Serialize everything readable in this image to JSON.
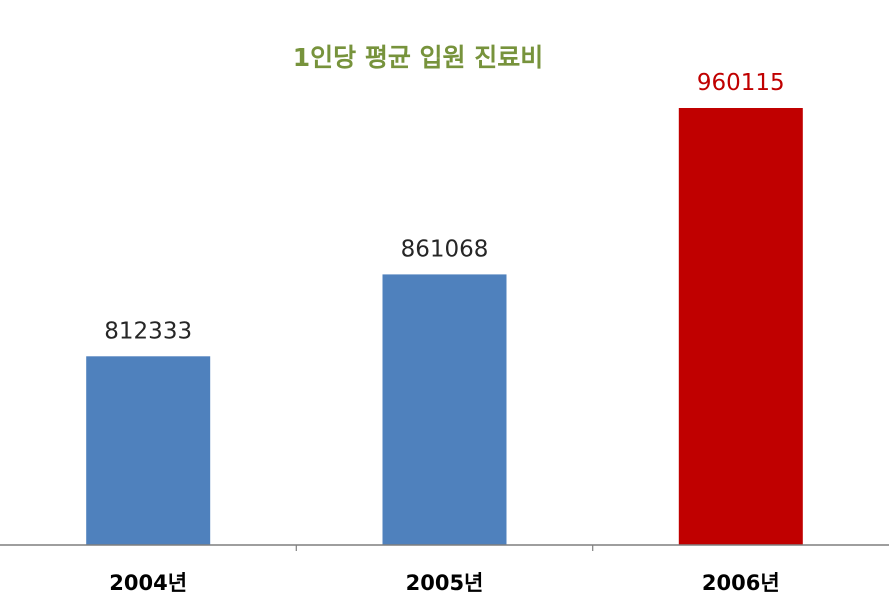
{
  "chart_data": {
    "type": "bar",
    "title": "1인당 평균 입원 진료비",
    "xlabel": "",
    "ylabel": "",
    "categories": [
      "2004년",
      "2005년",
      "2006년"
    ],
    "values": [
      812333,
      861068,
      960115
    ],
    "data_labels": [
      "812333",
      "861068",
      "960115"
    ],
    "ylim": [
      700000,
      1000000
    ],
    "grid": false,
    "legend": "none",
    "colors": {
      "title": "#77933C",
      "bar_default": "#4F81BD",
      "bar_highlight": "#C00000",
      "label_default": "#262626",
      "label_highlight": "#C00000",
      "axis": "#7F7F7F",
      "tick_label": "#000000"
    },
    "highlight_index": 2
  }
}
